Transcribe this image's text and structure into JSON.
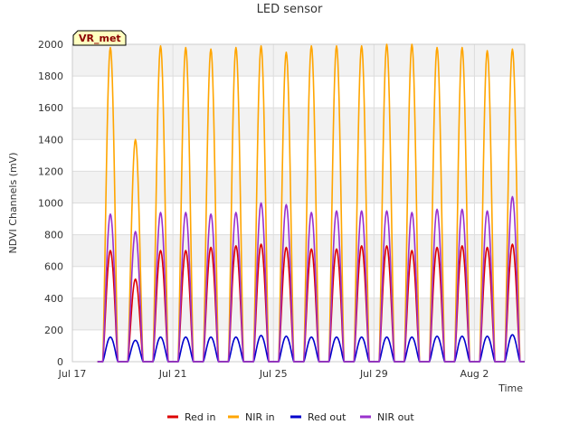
{
  "chart_data": {
    "type": "line",
    "title": "LED sensor",
    "xlabel": "Time",
    "ylabel": "NDVI Channels (mV)",
    "ylim": [
      0,
      2000
    ],
    "yticks": [
      0,
      200,
      400,
      600,
      800,
      1000,
      1200,
      1400,
      1600,
      1800,
      2000
    ],
    "xlim": [
      "2024-07-17",
      "2024-08-04"
    ],
    "xticks": [
      {
        "label": "Jul 17",
        "date": "2024-07-17"
      },
      {
        "label": "Jul 21",
        "date": "2024-07-21"
      },
      {
        "label": "Jul 25",
        "date": "2024-07-25"
      },
      {
        "label": "Jul 29",
        "date": "2024-07-29"
      },
      {
        "label": "Aug 2",
        "date": "2024-08-02"
      }
    ],
    "grid": true,
    "legend_position": "bottom",
    "annotation": "VR_met",
    "days": [
      "Jul 18",
      "Jul 19",
      "Jul 20",
      "Jul 21",
      "Jul 22",
      "Jul 23",
      "Jul 24",
      "Jul 25",
      "Jul 26",
      "Jul 27",
      "Jul 28",
      "Jul 29",
      "Jul 30",
      "Jul 31",
      "Aug 1",
      "Aug 2",
      "Aug 3"
    ],
    "series": [
      {
        "name": "Red in",
        "color": "#dd0000",
        "daily_peak": [
          700,
          520,
          700,
          700,
          720,
          730,
          740,
          720,
          710,
          710,
          730,
          730,
          700,
          720,
          730,
          720,
          740
        ]
      },
      {
        "name": "NIR in",
        "color": "#ffa500",
        "daily_peak": [
          1980,
          1400,
          1990,
          1980,
          1970,
          1980,
          1990,
          1950,
          1990,
          1990,
          1990,
          2000,
          2000,
          1980,
          1980,
          1960,
          1970
        ]
      },
      {
        "name": "Red out",
        "color": "#0000cc",
        "daily_peak": [
          155,
          135,
          155,
          155,
          155,
          155,
          165,
          160,
          155,
          155,
          155,
          155,
          155,
          160,
          160,
          160,
          170
        ]
      },
      {
        "name": "NIR out",
        "color": "#9a32cd",
        "daily_peak": [
          930,
          820,
          940,
          940,
          930,
          940,
          1000,
          990,
          940,
          950,
          950,
          950,
          940,
          960,
          960,
          950,
          1040
        ]
      }
    ]
  }
}
